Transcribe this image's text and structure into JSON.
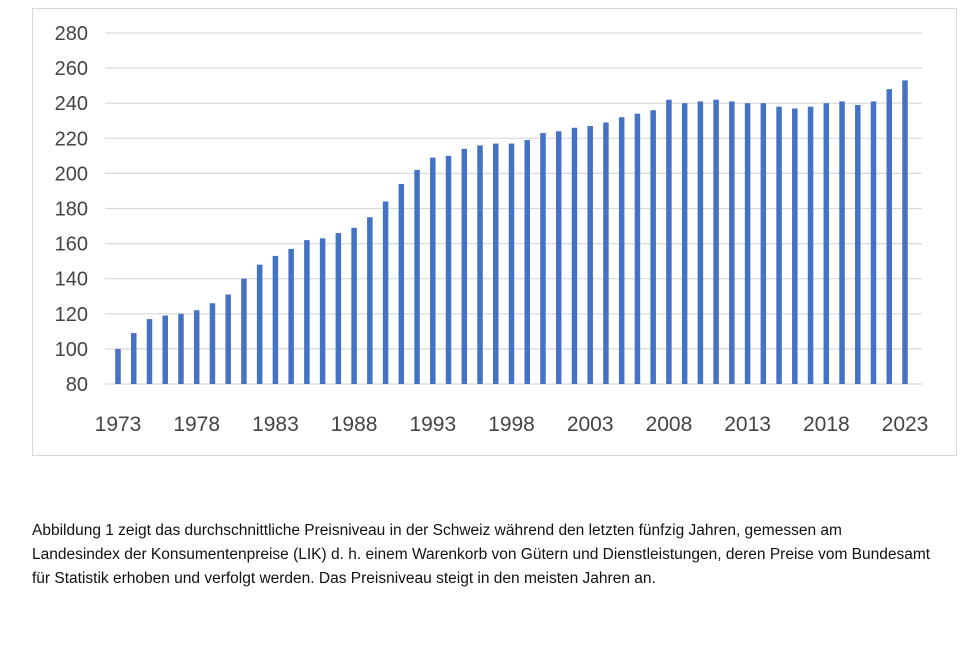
{
  "chart_data": {
    "type": "bar",
    "title": "",
    "xlabel": "",
    "ylabel": "",
    "ylim": [
      80,
      280
    ],
    "yticks": [
      80,
      100,
      120,
      140,
      160,
      180,
      200,
      220,
      240,
      260,
      280
    ],
    "xtick_labels": [
      "1973",
      "1978",
      "1983",
      "1988",
      "1993",
      "1998",
      "2003",
      "2008",
      "2013",
      "2018",
      "2023"
    ],
    "grid": true,
    "bar_color": "#4472c4",
    "categories": [
      1973,
      1974,
      1975,
      1976,
      1977,
      1978,
      1979,
      1980,
      1981,
      1982,
      1983,
      1984,
      1985,
      1986,
      1987,
      1988,
      1989,
      1990,
      1991,
      1992,
      1993,
      1994,
      1995,
      1996,
      1997,
      1998,
      1999,
      2000,
      2001,
      2002,
      2003,
      2004,
      2005,
      2006,
      2007,
      2008,
      2009,
      2010,
      2011,
      2012,
      2013,
      2014,
      2015,
      2016,
      2017,
      2018,
      2019,
      2020,
      2021,
      2022,
      2023
    ],
    "values": [
      100,
      109,
      117,
      119,
      120,
      122,
      126,
      131,
      140,
      148,
      153,
      157,
      162,
      163,
      166,
      169,
      175,
      184,
      194,
      202,
      209,
      210,
      214,
      216,
      217,
      217,
      219,
      223,
      224,
      226,
      227,
      229,
      232,
      234,
      236,
      242,
      240,
      241,
      242,
      241,
      240,
      240,
      238,
      237,
      238,
      240,
      241,
      239,
      241,
      248,
      253
    ]
  },
  "caption": "Abbildung 1 zeigt das durchschnittliche Preisniveau in der Schweiz während den letzten fünfzig Jahren, gemessen am Landesindex der Konsumentenpreise (LIK) d. h. einem Warenkorb von Gütern und Dienstleistungen, deren Preise vom Bundesamt für Statistik erhoben und verfolgt werden. Das Preisniveau steigt in den meisten Jahren an."
}
